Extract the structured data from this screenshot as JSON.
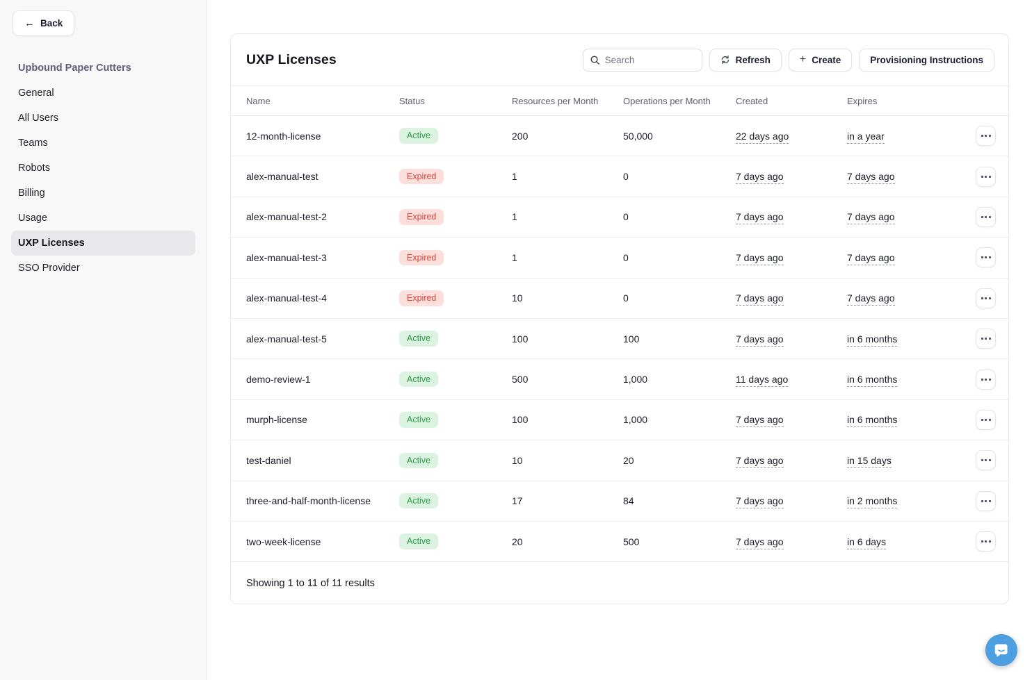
{
  "sidebar": {
    "back_label": "Back",
    "org_name": "Upbound Paper Cutters",
    "items": [
      {
        "label": "General",
        "active": false
      },
      {
        "label": "All Users",
        "active": false
      },
      {
        "label": "Teams",
        "active": false
      },
      {
        "label": "Robots",
        "active": false
      },
      {
        "label": "Billing",
        "active": false
      },
      {
        "label": "Usage",
        "active": false
      },
      {
        "label": "UXP Licenses",
        "active": true
      },
      {
        "label": "SSO Provider",
        "active": false
      }
    ]
  },
  "main": {
    "title": "UXP Licenses",
    "search": {
      "placeholder": "Search",
      "value": ""
    },
    "buttons": {
      "refresh": "Refresh",
      "create": "Create",
      "provisioning": "Provisioning Instructions"
    },
    "table": {
      "columns": [
        "Name",
        "Status",
        "Resources per Month",
        "Operations per Month",
        "Created",
        "Expires"
      ],
      "rows": [
        {
          "name": "12-month-license",
          "status": "Active",
          "resources": "200",
          "operations": "50,000",
          "created": "22 days ago",
          "expires": "in a year"
        },
        {
          "name": "alex-manual-test",
          "status": "Expired",
          "resources": "1",
          "operations": "0",
          "created": "7 days ago",
          "expires": "7 days ago"
        },
        {
          "name": "alex-manual-test-2",
          "status": "Expired",
          "resources": "1",
          "operations": "0",
          "created": "7 days ago",
          "expires": "7 days ago"
        },
        {
          "name": "alex-manual-test-3",
          "status": "Expired",
          "resources": "1",
          "operations": "0",
          "created": "7 days ago",
          "expires": "7 days ago"
        },
        {
          "name": "alex-manual-test-4",
          "status": "Expired",
          "resources": "10",
          "operations": "0",
          "created": "7 days ago",
          "expires": "7 days ago"
        },
        {
          "name": "alex-manual-test-5",
          "status": "Active",
          "resources": "100",
          "operations": "100",
          "created": "7 days ago",
          "expires": "in 6 months"
        },
        {
          "name": "demo-review-1",
          "status": "Active",
          "resources": "500",
          "operations": "1,000",
          "created": "11 days ago",
          "expires": "in 6 months"
        },
        {
          "name": "murph-license",
          "status": "Active",
          "resources": "100",
          "operations": "1,000",
          "created": "7 days ago",
          "expires": "in 6 months"
        },
        {
          "name": "test-daniel",
          "status": "Active",
          "resources": "10",
          "operations": "20",
          "created": "7 days ago",
          "expires": "in 15 days"
        },
        {
          "name": "three-and-half-month-license",
          "status": "Active",
          "resources": "17",
          "operations": "84",
          "created": "7 days ago",
          "expires": "in 2 months"
        },
        {
          "name": "two-week-license",
          "status": "Active",
          "resources": "20",
          "operations": "500",
          "created": "7 days ago",
          "expires": "in 6 days"
        }
      ],
      "footer": "Showing 1 to 11 of 11 results"
    }
  },
  "icons": {
    "back_arrow": "left-arrow-icon ←",
    "search": "magnifier-icon",
    "refresh": "circular-arrows-icon",
    "create": "plus-icon +",
    "row_actions": "ellipsis-icon •••",
    "chat": "speech-bubble-smile-icon"
  },
  "colors": {
    "status_active_bg": "#ddf3e2",
    "status_active_text": "#2b9d4a",
    "status_expired_bg": "#fcdeda",
    "status_expired_text": "#d8413c",
    "sidebar_bg": "#f8f8f9",
    "sidebar_active_bg": "#e8e8eb",
    "sidebar_org_text": "#605d76",
    "chat_launcher": "#4d9fe1",
    "border": "#e8e8ec"
  }
}
